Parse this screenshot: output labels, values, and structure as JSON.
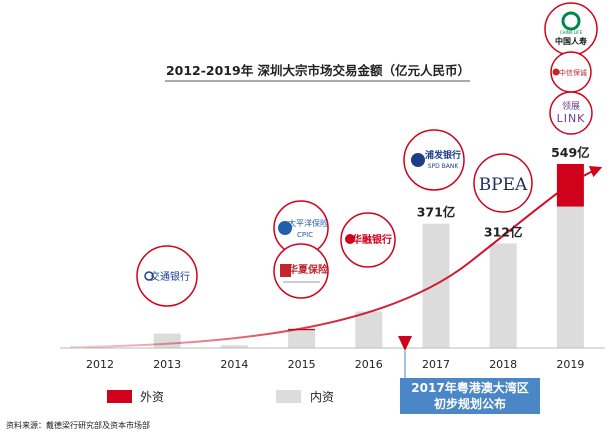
{
  "chart_data": {
    "type": "bar",
    "title": "2012-2019年 深圳大宗市场交易金额（亿元人民币）",
    "categories": [
      "2012",
      "2013",
      "2014",
      "2015",
      "2016",
      "2017",
      "2018",
      "2019"
    ],
    "series": [
      {
        "name": "内资",
        "color": "#dcdcdc",
        "values": [
          3,
          43,
          8,
          53,
          109,
          371,
          312,
          422
        ]
      },
      {
        "name": "外资",
        "color": "#d0021b",
        "values": [
          0,
          0,
          0,
          4,
          0,
          0,
          0,
          127
        ]
      }
    ],
    "value_labels": [
      {
        "category": "2017",
        "text": "371亿"
      },
      {
        "category": "2018",
        "text": "312亿"
      },
      {
        "category": "2019",
        "text": "549亿"
      }
    ],
    "ylim": [
      0,
      549
    ],
    "legend": [
      {
        "name": "外资",
        "color": "#d0021b"
      },
      {
        "name": "内资",
        "color": "#dcdcdc"
      }
    ],
    "annotation": {
      "category": "2017",
      "line1": "2017年粤港澳大湾区",
      "line2": "初步规划公布"
    },
    "source": "资料来源：戴德梁行研究部及资本市场部",
    "investor_logos": [
      {
        "category": "2013",
        "name": "交通银行"
      },
      {
        "category": "2015",
        "name": "太平洋保险",
        "sub": "CPIC"
      },
      {
        "category": "2015",
        "name": "华夏保险"
      },
      {
        "category": "2016",
        "name": "华融银行"
      },
      {
        "category": "2017",
        "name": "浦发银行",
        "sub": "SPD BANK"
      },
      {
        "category": "2018",
        "name": "BPEA"
      },
      {
        "category": "2019",
        "name": "领展",
        "sub": "LINK"
      },
      {
        "category": "2019",
        "name": "中信保诚"
      },
      {
        "category": "2019",
        "name": "中国人寿",
        "sub": "CHINA LIFE"
      }
    ],
    "colors": {
      "accent": "#d0021b",
      "annotation_bg": "#4b86c6",
      "bar": "#dcdcdc"
    }
  }
}
